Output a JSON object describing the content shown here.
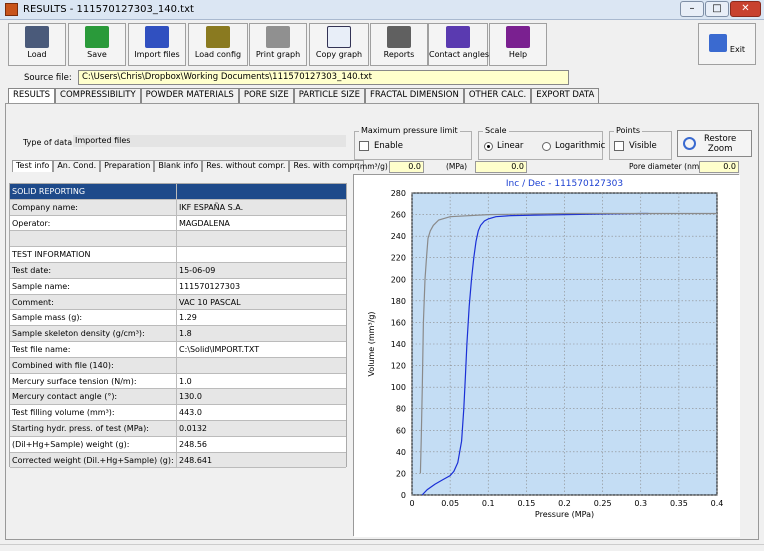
{
  "window": {
    "title": "RESULTS - 111570127303_140.txt"
  },
  "toolbar": [
    {
      "label": "Load",
      "icon": "load-disks-icon"
    },
    {
      "label": "Save",
      "icon": "save-disk-icon"
    },
    {
      "label": "Import files",
      "icon": "import-files-icon"
    },
    {
      "label": "Load config",
      "icon": "load-config-icon"
    },
    {
      "label": "Print graph",
      "icon": "printer-icon"
    },
    {
      "label": "Copy graph",
      "icon": "copy-graph-icon"
    },
    {
      "label": "Reports",
      "icon": "reports-icon"
    },
    {
      "label": "Contact angles",
      "icon": "contact-angles-icon"
    },
    {
      "label": "Help",
      "icon": "help-book-icon"
    }
  ],
  "exit_label": "Exit",
  "source": {
    "label": "Source file:",
    "value": "C:\\Users\\Chris\\Dropbox\\Working Documents\\111570127303_140.txt"
  },
  "main_tabs": [
    "RESULTS",
    "COMPRESSIBILITY",
    "POWDER MATERIALS",
    "PORE SIZE",
    "PARTICLE SIZE",
    "FRACTAL DIMENSION",
    "OTHER CALC.",
    "EXPORT DATA"
  ],
  "type_of_data": {
    "label": "Type of data",
    "value": "Imported files"
  },
  "sub_tabs": [
    "Test info",
    "An. Cond.",
    "Preparation",
    "Blank info",
    "Res. without compr.",
    "Res. with compr."
  ],
  "grid_rows": [
    {
      "label": "SOLID REPORTING",
      "value": "",
      "kind": "hdr"
    },
    {
      "label": "Company name:",
      "value": "IKF ESPAÑA S.A.",
      "kind": "alt"
    },
    {
      "label": "Operator:",
      "value": "MAGDALENA",
      "kind": "norm"
    },
    {
      "label": "",
      "value": "",
      "kind": "alt"
    },
    {
      "label": "TEST INFORMATION",
      "value": "",
      "kind": "norm"
    },
    {
      "label": "Test date:",
      "value": "15-06-09",
      "kind": "alt"
    },
    {
      "label": "Sample name:",
      "value": "111570127303",
      "kind": "norm"
    },
    {
      "label": "Comment:",
      "value": "VAC 10 PASCAL",
      "kind": "alt"
    },
    {
      "label": "Sample mass (g):",
      "value": "1.29",
      "kind": "norm"
    },
    {
      "label": "Sample skeleton density (g/cm³):",
      "value": "1.8",
      "kind": "alt"
    },
    {
      "label": "Test file name:",
      "value": "C:\\Solid\\IMPORT.TXT",
      "kind": "norm"
    },
    {
      "label": "Combined with file (140):",
      "value": "",
      "kind": "alt"
    },
    {
      "label": "Mercury surface tension (N/m):",
      "value": "1.0",
      "kind": "norm"
    },
    {
      "label": "Mercury contact angle (°):",
      "value": "130.0",
      "kind": "alt"
    },
    {
      "label": "Test filling volume (mm³):",
      "value": "443.0",
      "kind": "norm"
    },
    {
      "label": "Starting hydr. press. of test (MPa):",
      "value": "0.0132",
      "kind": "alt"
    },
    {
      "label": "(Dil+Hg+Sample) weight (g):",
      "value": "248.56",
      "kind": "norm"
    },
    {
      "label": "Corrected weight (Dil.+Hg+Sample) (g):",
      "value": "248.641",
      "kind": "alt"
    }
  ],
  "max_pressure": {
    "title": "Maximum pressure limit",
    "enable_label": "Enable"
  },
  "scale": {
    "title": "Scale",
    "linear": "Linear",
    "log": "Logarithmic",
    "selected": "Linear"
  },
  "points": {
    "title": "Points",
    "visible": "Visible"
  },
  "restore_zoom": "Restore\nZoom",
  "readouts": {
    "mmhg_label": "(mm³/g)",
    "mmhg_value": "0.0",
    "mpa_label": "(MPa)",
    "mpa_value": "0.0",
    "pore_label": "Pore diameter (nm)",
    "pore_value": "0.0"
  },
  "colors": {
    "plot_bg": "#c4ddf4",
    "blue_curve": "#1a2fd6",
    "gray_curve": "#8a8a8a",
    "title_blue": "#1b3fd1"
  },
  "chart_data": {
    "type": "line",
    "title": "Inc / Dec - 111570127303",
    "xlabel": "Pressure (MPa)",
    "ylabel": "Volume (mm³/g)",
    "xlim": [
      0,
      0.4
    ],
    "ylim": [
      0,
      280
    ],
    "xticks": [
      "0",
      "0.05",
      "0.1",
      "0.15",
      "0.2",
      "0.25",
      "0.3",
      "0.35",
      "0.4"
    ],
    "yticks": [
      "0",
      "20",
      "40",
      "60",
      "80",
      "100",
      "120",
      "140",
      "160",
      "180",
      "200",
      "220",
      "240",
      "260",
      "280"
    ],
    "grid": true,
    "series": [
      {
        "color": "#1a2fd6",
        "x": [
          0.0132,
          0.02,
          0.03,
          0.04,
          0.05,
          0.055,
          0.06,
          0.065,
          0.068,
          0.07,
          0.072,
          0.075,
          0.078,
          0.081,
          0.084,
          0.087,
          0.09,
          0.095,
          0.1,
          0.11,
          0.13,
          0.16,
          0.2,
          0.25,
          0.3,
          0.31
        ],
        "y": [
          0,
          5,
          10,
          14,
          18,
          22,
          30,
          50,
          80,
          110,
          140,
          175,
          200,
          220,
          235,
          245,
          250,
          254,
          256,
          258,
          259,
          259.5,
          260,
          260.5,
          261,
          261
        ]
      },
      {
        "color": "#8a8a8a",
        "x": [
          0.31,
          0.2,
          0.1,
          0.05,
          0.035,
          0.028,
          0.024,
          0.021,
          0.019,
          0.017,
          0.015,
          0.0135,
          0.012,
          0.011
        ],
        "y": [
          261,
          261,
          260,
          258,
          255,
          250,
          245,
          238,
          220,
          200,
          160,
          100,
          50,
          20
        ]
      },
      {
        "color": "#8a8a8a",
        "x": [
          0.31,
          0.4
        ],
        "y": [
          261,
          261
        ]
      }
    ]
  }
}
